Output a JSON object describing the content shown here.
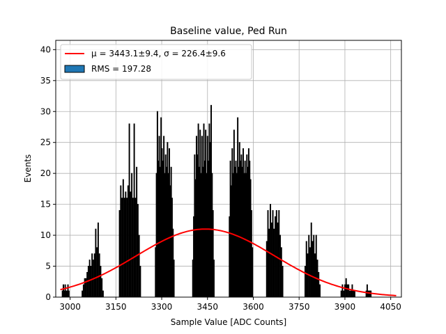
{
  "chart_data": {
    "type": "bar",
    "title": "Baseline value, Ped Run",
    "xlabel": "Sample Value [ADC Counts]",
    "ylabel": "Events",
    "xlim": [
      2953,
      4085
    ],
    "ylim": [
      0,
      41.5
    ],
    "grid": true,
    "x_ticks": [
      3000,
      3150,
      3300,
      3450,
      3600,
      3750,
      3900,
      4050
    ],
    "y_ticks": [
      0,
      5,
      10,
      15,
      20,
      25,
      30,
      35,
      40
    ],
    "legend_placement": "top-left",
    "legend": [
      {
        "label": "μ = 3443.1±9.4, σ = 226.4±9.6",
        "type": "line",
        "color": "#ff0000"
      },
      {
        "label": "RMS = 197.28",
        "type": "patch",
        "color": "#1f77b4"
      }
    ],
    "fit": {
      "type": "gaussian",
      "mu": 3443.1,
      "mu_err": 9.4,
      "sigma": 226.4,
      "sigma_err": 9.6,
      "amplitude": 11.0,
      "x_range": [
        2968,
        4068
      ],
      "color": "#ff0000"
    },
    "series": [
      {
        "name": "RMS = 197.28",
        "color": "#1f77b4",
        "edgecolor": "#000000",
        "bins": [
          {
            "x": 2975,
            "y": 1
          },
          {
            "x": 2978,
            "y": 2
          },
          {
            "x": 2981,
            "y": 1
          },
          {
            "x": 2984,
            "y": 2
          },
          {
            "x": 2987,
            "y": 1
          },
          {
            "x": 2990,
            "y": 1
          },
          {
            "x": 2993,
            "y": 2
          },
          {
            "x": 2996,
            "y": 1
          },
          {
            "x": 3040,
            "y": 1
          },
          {
            "x": 3044,
            "y": 2
          },
          {
            "x": 3048,
            "y": 3
          },
          {
            "x": 3052,
            "y": 3
          },
          {
            "x": 3056,
            "y": 4
          },
          {
            "x": 3060,
            "y": 5
          },
          {
            "x": 3064,
            "y": 6
          },
          {
            "x": 3068,
            "y": 5
          },
          {
            "x": 3072,
            "y": 7
          },
          {
            "x": 3076,
            "y": 6
          },
          {
            "x": 3080,
            "y": 7
          },
          {
            "x": 3084,
            "y": 11
          },
          {
            "x": 3088,
            "y": 8
          },
          {
            "x": 3092,
            "y": 12
          },
          {
            "x": 3096,
            "y": 7
          },
          {
            "x": 3100,
            "y": 5
          },
          {
            "x": 3104,
            "y": 3
          },
          {
            "x": 3108,
            "y": 1
          },
          {
            "x": 3162,
            "y": 14
          },
          {
            "x": 3166,
            "y": 18
          },
          {
            "x": 3170,
            "y": 16
          },
          {
            "x": 3174,
            "y": 19
          },
          {
            "x": 3178,
            "y": 16
          },
          {
            "x": 3182,
            "y": 17
          },
          {
            "x": 3186,
            "y": 16
          },
          {
            "x": 3190,
            "y": 18
          },
          {
            "x": 3194,
            "y": 28
          },
          {
            "x": 3198,
            "y": 17
          },
          {
            "x": 3202,
            "y": 20
          },
          {
            "x": 3206,
            "y": 16
          },
          {
            "x": 3210,
            "y": 28
          },
          {
            "x": 3214,
            "y": 16
          },
          {
            "x": 3218,
            "y": 21
          },
          {
            "x": 3222,
            "y": 15
          },
          {
            "x": 3226,
            "y": 10
          },
          {
            "x": 3230,
            "y": 5
          },
          {
            "x": 3280,
            "y": 8
          },
          {
            "x": 3283,
            "y": 20
          },
          {
            "x": 3286,
            "y": 30
          },
          {
            "x": 3289,
            "y": 22
          },
          {
            "x": 3292,
            "y": 26
          },
          {
            "x": 3295,
            "y": 21
          },
          {
            "x": 3298,
            "y": 29
          },
          {
            "x": 3301,
            "y": 24
          },
          {
            "x": 3304,
            "y": 22
          },
          {
            "x": 3307,
            "y": 26
          },
          {
            "x": 3310,
            "y": 20
          },
          {
            "x": 3313,
            "y": 23
          },
          {
            "x": 3316,
            "y": 21
          },
          {
            "x": 3319,
            "y": 25
          },
          {
            "x": 3322,
            "y": 20
          },
          {
            "x": 3325,
            "y": 24
          },
          {
            "x": 3328,
            "y": 18
          },
          {
            "x": 3331,
            "y": 21
          },
          {
            "x": 3334,
            "y": 16
          },
          {
            "x": 3337,
            "y": 11
          },
          {
            "x": 3340,
            "y": 6
          },
          {
            "x": 3402,
            "y": 6
          },
          {
            "x": 3405,
            "y": 13
          },
          {
            "x": 3408,
            "y": 23
          },
          {
            "x": 3411,
            "y": 19
          },
          {
            "x": 3414,
            "y": 26
          },
          {
            "x": 3417,
            "y": 23
          },
          {
            "x": 3420,
            "y": 28
          },
          {
            "x": 3423,
            "y": 21
          },
          {
            "x": 3426,
            "y": 27
          },
          {
            "x": 3429,
            "y": 20
          },
          {
            "x": 3432,
            "y": 26
          },
          {
            "x": 3435,
            "y": 21
          },
          {
            "x": 3438,
            "y": 28
          },
          {
            "x": 3441,
            "y": 22
          },
          {
            "x": 3444,
            "y": 27
          },
          {
            "x": 3447,
            "y": 20
          },
          {
            "x": 3450,
            "y": 26
          },
          {
            "x": 3453,
            "y": 22
          },
          {
            "x": 3456,
            "y": 28
          },
          {
            "x": 3459,
            "y": 25
          },
          {
            "x": 3462,
            "y": 31
          },
          {
            "x": 3465,
            "y": 20
          },
          {
            "x": 3468,
            "y": 14
          },
          {
            "x": 3471,
            "y": 6
          },
          {
            "x": 3522,
            "y": 13
          },
          {
            "x": 3525,
            "y": 22
          },
          {
            "x": 3528,
            "y": 18
          },
          {
            "x": 3531,
            "y": 24
          },
          {
            "x": 3534,
            "y": 20
          },
          {
            "x": 3537,
            "y": 27
          },
          {
            "x": 3540,
            "y": 21
          },
          {
            "x": 3543,
            "y": 22
          },
          {
            "x": 3546,
            "y": 20
          },
          {
            "x": 3549,
            "y": 29
          },
          {
            "x": 3552,
            "y": 21
          },
          {
            "x": 3555,
            "y": 25
          },
          {
            "x": 3558,
            "y": 22
          },
          {
            "x": 3561,
            "y": 23
          },
          {
            "x": 3564,
            "y": 21
          },
          {
            "x": 3567,
            "y": 24
          },
          {
            "x": 3570,
            "y": 20
          },
          {
            "x": 3573,
            "y": 22
          },
          {
            "x": 3576,
            "y": 20
          },
          {
            "x": 3579,
            "y": 23
          },
          {
            "x": 3582,
            "y": 21
          },
          {
            "x": 3585,
            "y": 24
          },
          {
            "x": 3588,
            "y": 22
          },
          {
            "x": 3591,
            "y": 19
          },
          {
            "x": 3594,
            "y": 14
          },
          {
            "x": 3597,
            "y": 8
          },
          {
            "x": 3644,
            "y": 9
          },
          {
            "x": 3648,
            "y": 14
          },
          {
            "x": 3652,
            "y": 11
          },
          {
            "x": 3656,
            "y": 15
          },
          {
            "x": 3660,
            "y": 12
          },
          {
            "x": 3664,
            "y": 14
          },
          {
            "x": 3668,
            "y": 11
          },
          {
            "x": 3672,
            "y": 13
          },
          {
            "x": 3676,
            "y": 14
          },
          {
            "x": 3680,
            "y": 12
          },
          {
            "x": 3684,
            "y": 14
          },
          {
            "x": 3688,
            "y": 10
          },
          {
            "x": 3692,
            "y": 8
          },
          {
            "x": 3696,
            "y": 5
          },
          {
            "x": 3770,
            "y": 5
          },
          {
            "x": 3774,
            "y": 9
          },
          {
            "x": 3778,
            "y": 7
          },
          {
            "x": 3782,
            "y": 10
          },
          {
            "x": 3786,
            "y": 8
          },
          {
            "x": 3790,
            "y": 12
          },
          {
            "x": 3794,
            "y": 9
          },
          {
            "x": 3798,
            "y": 10
          },
          {
            "x": 3802,
            "y": 7
          },
          {
            "x": 3806,
            "y": 10
          },
          {
            "x": 3810,
            "y": 6
          },
          {
            "x": 3814,
            "y": 4
          },
          {
            "x": 3818,
            "y": 2
          },
          {
            "x": 3888,
            "y": 1
          },
          {
            "x": 3892,
            "y": 2
          },
          {
            "x": 3896,
            "y": 1
          },
          {
            "x": 3900,
            "y": 2
          },
          {
            "x": 3904,
            "y": 3
          },
          {
            "x": 3908,
            "y": 2
          },
          {
            "x": 3912,
            "y": 2
          },
          {
            "x": 3916,
            "y": 1
          },
          {
            "x": 3920,
            "y": 1
          },
          {
            "x": 3924,
            "y": 2
          },
          {
            "x": 3928,
            "y": 1
          },
          {
            "x": 3932,
            "y": 1
          },
          {
            "x": 3970,
            "y": 1
          },
          {
            "x": 3973,
            "y": 2
          },
          {
            "x": 3976,
            "y": 1
          },
          {
            "x": 3979,
            "y": 1
          },
          {
            "x": 3982,
            "y": 1
          },
          {
            "x": 3985,
            "y": 1
          }
        ]
      }
    ]
  }
}
